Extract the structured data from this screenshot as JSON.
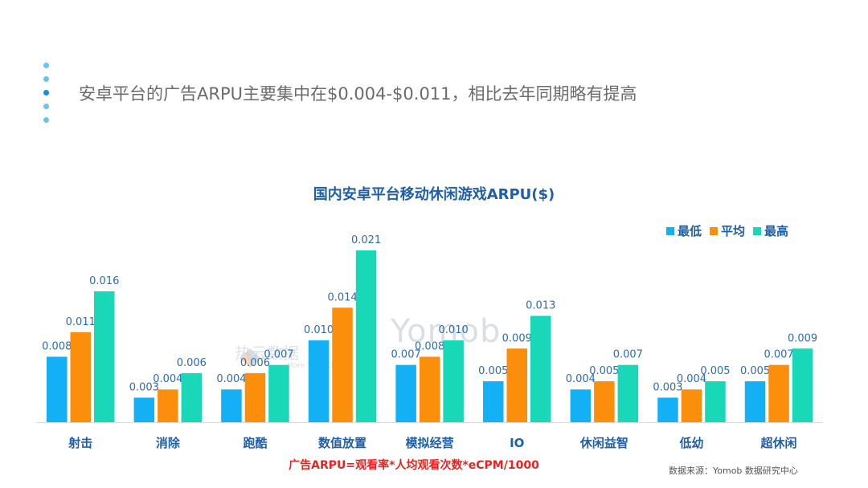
{
  "headline": "安卓平台的广告ARPU主要集中在$0.004-$0.011，相比去年同期略有提高",
  "watermarks": {
    "rebo_cn": "热云数据",
    "rebo_en": "More Than Data",
    "yomob": "Yomob"
  },
  "chart_data": {
    "type": "bar",
    "title": "国内安卓平台移动休闲游戏ARPU($)",
    "categories": [
      "射击",
      "消除",
      "跑酷",
      "数值放置",
      "模拟经营",
      "IO",
      "休闲益智",
      "低幼",
      "超休闲"
    ],
    "series": [
      {
        "name": "最低",
        "color": "#13b0f5",
        "values": [
          0.008,
          0.003,
          0.004,
          0.01,
          0.007,
          0.005,
          0.004,
          0.003,
          0.005
        ],
        "labels": [
          "0.008",
          "0.003",
          "0.004",
          "0.010",
          "0.007",
          "0.005",
          "0.004",
          "0.003",
          "0.005"
        ]
      },
      {
        "name": "平均",
        "color": "#fb8e0b",
        "values": [
          0.011,
          0.004,
          0.006,
          0.014,
          0.008,
          0.009,
          0.005,
          0.004,
          0.007
        ],
        "labels": [
          "0.011",
          "0.004",
          "0.006",
          "0.014",
          "0.008",
          "0.009",
          "0.005",
          "0.004",
          "0.007"
        ]
      },
      {
        "name": "最高",
        "color": "#19d8b8",
        "values": [
          0.016,
          0.006,
          0.007,
          0.021,
          0.01,
          0.013,
          0.007,
          0.005,
          0.009
        ],
        "labels": [
          "0.016",
          "0.006",
          "0.007",
          "0.021",
          "0.010",
          "0.013",
          "0.007",
          "0.005",
          "0.009"
        ]
      }
    ],
    "ylim": [
      0,
      0.021
    ],
    "grid": false,
    "legend_position": "top-right",
    "xlabel": "",
    "ylabel": ""
  },
  "formula": "广告ARPU=观看率*人均观看次数*eCPM/1000",
  "source": "数据来源：Yomob 数据研究中心"
}
